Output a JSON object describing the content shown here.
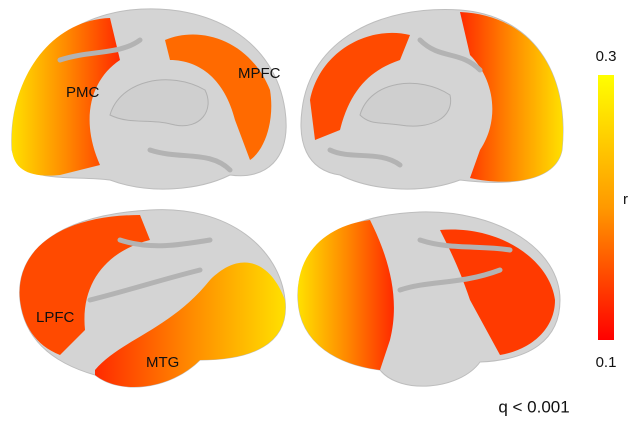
{
  "annotations": [
    "PMC",
    "MPFC",
    "LPFC",
    "MTG"
  ],
  "colorbar": {
    "label": "r",
    "lim": [
      0.1,
      0.3
    ],
    "ticks": [
      0.3,
      0.1
    ],
    "colors": [
      "#ff0000",
      "#ff9900",
      "#ffff00"
    ]
  },
  "footnote": "q < 0.001"
}
